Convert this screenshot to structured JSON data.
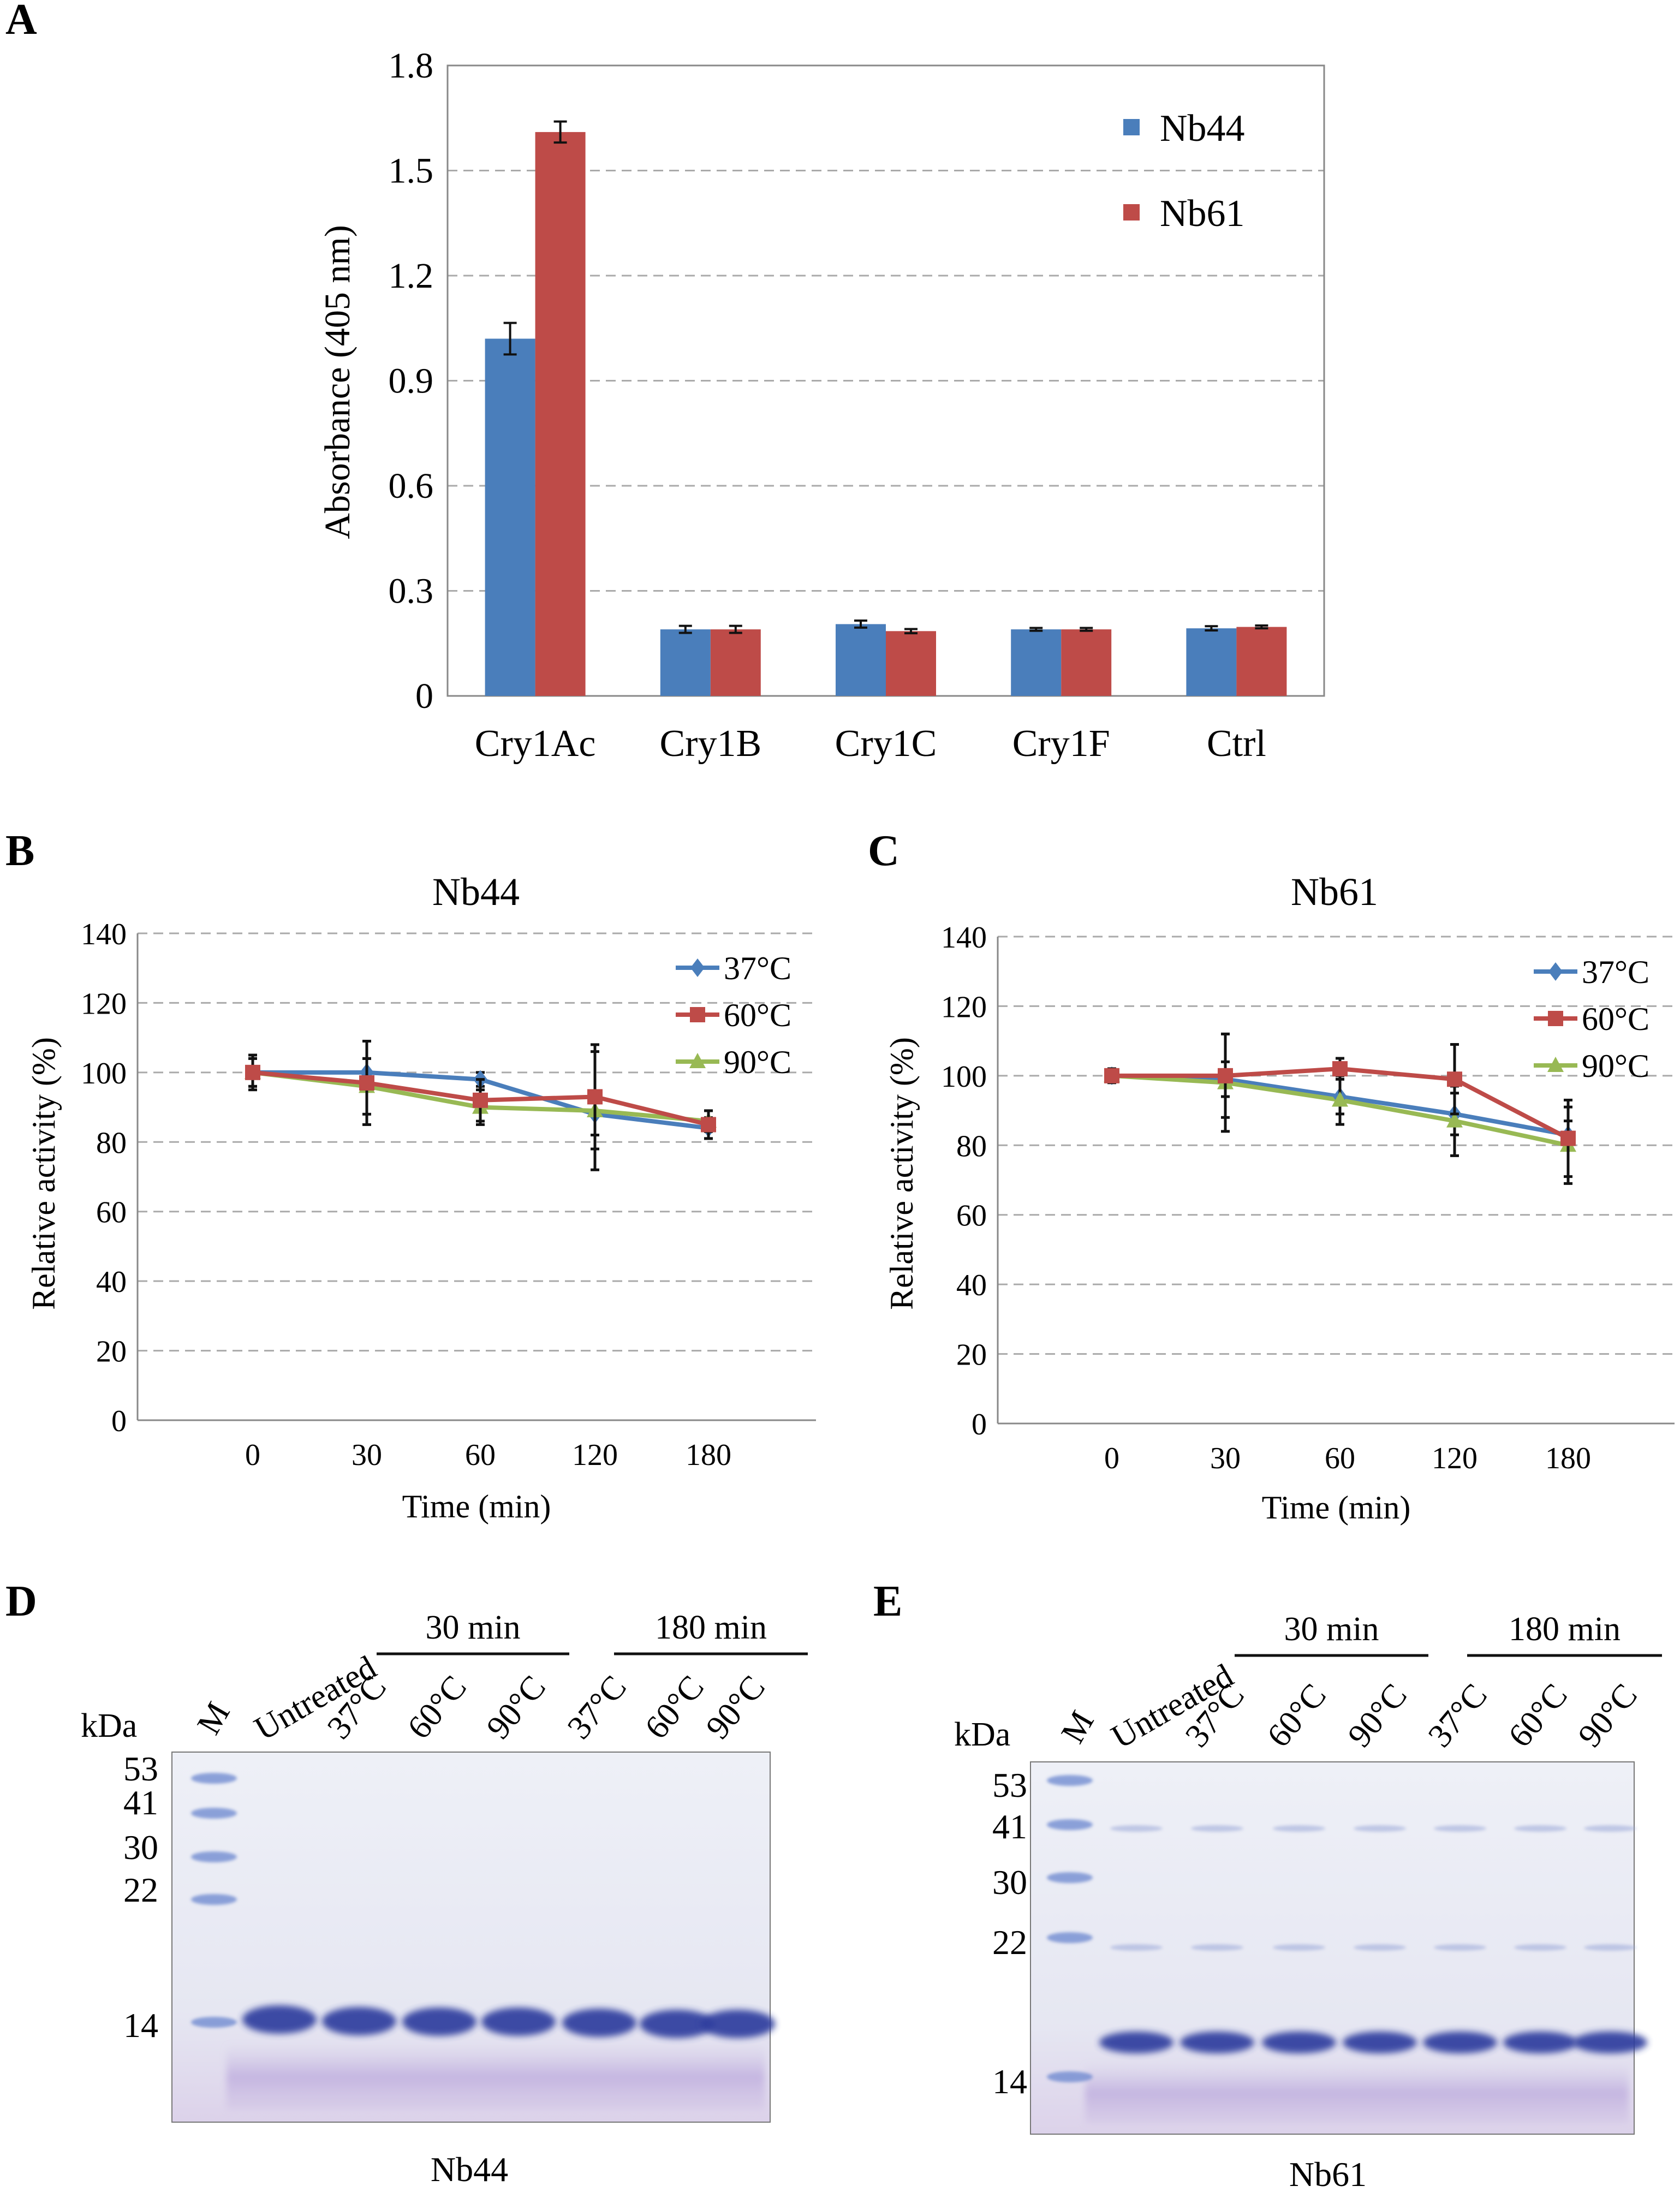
{
  "panels": {
    "A": "A",
    "B": "B",
    "C": "C",
    "D": "D",
    "E": "E"
  },
  "chart_data": [
    {
      "id": "A",
      "type": "bar",
      "title": "",
      "xlabel": "",
      "ylabel": "Absorbance (405 nm)",
      "ylim": [
        0,
        1.8
      ],
      "yticks": [
        0,
        0.3,
        0.6,
        0.9,
        1.2,
        1.5,
        1.8
      ],
      "ytick_labels": [
        "0",
        "0.3",
        "0.6",
        "0.9",
        "1.2",
        "1.5",
        "1.8"
      ],
      "grid": true,
      "legend": "top-right",
      "categories": [
        "Cry1Ac",
        "Cry1B",
        "Cry1C",
        "Cry1F",
        "Ctrl"
      ],
      "series": [
        {
          "name": "Nb44",
          "color": "#4a7ebb",
          "values": [
            1.02,
            0.19,
            0.205,
            0.19,
            0.193
          ],
          "errors": [
            0.045,
            0.01,
            0.01,
            0.004,
            0.006
          ]
        },
        {
          "name": "Nb61",
          "color": "#be4b48",
          "values": [
            1.61,
            0.19,
            0.185,
            0.19,
            0.197
          ],
          "errors": [
            0.03,
            0.01,
            0.006,
            0.004,
            0.004
          ]
        }
      ]
    },
    {
      "id": "B",
      "type": "line",
      "title": "Nb44",
      "xlabel": "Time (min)",
      "ylabel": "Relative activity (%)",
      "ylim": [
        0,
        140
      ],
      "yticks": [
        0,
        20,
        40,
        60,
        80,
        100,
        120,
        140
      ],
      "ytick_labels": [
        "0",
        "20",
        "40",
        "60",
        "80",
        "100",
        "120",
        "140"
      ],
      "categories": [
        "0",
        "30",
        "60",
        "120",
        "180"
      ],
      "grid": true,
      "legend": "top-right",
      "series": [
        {
          "name": "37°C",
          "color": "#4a7ebb",
          "marker": "diamond",
          "values": [
            100,
            100,
            98,
            88,
            84
          ],
          "errors": [
            4,
            4,
            2,
            6,
            3
          ]
        },
        {
          "name": "60°C",
          "color": "#be4b48",
          "marker": "square",
          "values": [
            100,
            97,
            92,
            93,
            85
          ],
          "errors": [
            5,
            12,
            6,
            15,
            4
          ]
        },
        {
          "name": "90°C",
          "color": "#98b954",
          "marker": "triangle",
          "values": [
            100,
            96,
            90,
            89,
            86
          ],
          "errors": [
            4,
            8,
            5,
            17,
            3
          ]
        }
      ]
    },
    {
      "id": "C",
      "type": "line",
      "title": "Nb61",
      "xlabel": "Time (min)",
      "ylabel": "Relative activity (%)",
      "ylim": [
        0,
        140
      ],
      "yticks": [
        0,
        20,
        40,
        60,
        80,
        100,
        120,
        140
      ],
      "ytick_labels": [
        "0",
        "20",
        "40",
        "60",
        "80",
        "100",
        "120",
        "140"
      ],
      "categories": [
        "0",
        "30",
        "60",
        "120",
        "180"
      ],
      "grid": true,
      "legend": "top-right",
      "series": [
        {
          "name": "37°C",
          "color": "#4a7ebb",
          "marker": "diamond",
          "values": [
            100,
            99,
            94,
            89,
            83
          ],
          "errors": [
            2,
            5,
            5,
            6,
            4
          ]
        },
        {
          "name": "60°C",
          "color": "#be4b48",
          "marker": "square",
          "values": [
            100,
            100,
            102,
            99,
            82
          ],
          "errors": [
            2,
            12,
            3,
            10,
            11
          ]
        },
        {
          "name": "90°C",
          "color": "#98b954",
          "marker": "triangle",
          "values": [
            100,
            98,
            93,
            87,
            80
          ],
          "errors": [
            2,
            14,
            7,
            10,
            11
          ]
        }
      ]
    }
  ],
  "gels": [
    {
      "id": "D",
      "caption": "Nb44",
      "kda_label": "kDa",
      "marker_label": "M",
      "untreated_label": "Untreated",
      "group_labels": [
        "30 min",
        "180 min"
      ],
      "temp_labels": [
        "37°C",
        "60°C",
        "90°C",
        "37°C",
        "60°C",
        "90°C"
      ],
      "ladder_kda": [
        "53",
        "41",
        "30",
        "22",
        "14"
      ]
    },
    {
      "id": "E",
      "caption": "Nb61",
      "kda_label": "kDa",
      "marker_label": "M",
      "untreated_label": "Untreated",
      "group_labels": [
        "30 min",
        "180 min"
      ],
      "temp_labels": [
        "37°C",
        "60°C",
        "90°C",
        "37°C",
        "60°C",
        "90°C"
      ],
      "ladder_kda": [
        "53",
        "41",
        "30",
        "22",
        "14"
      ]
    }
  ]
}
